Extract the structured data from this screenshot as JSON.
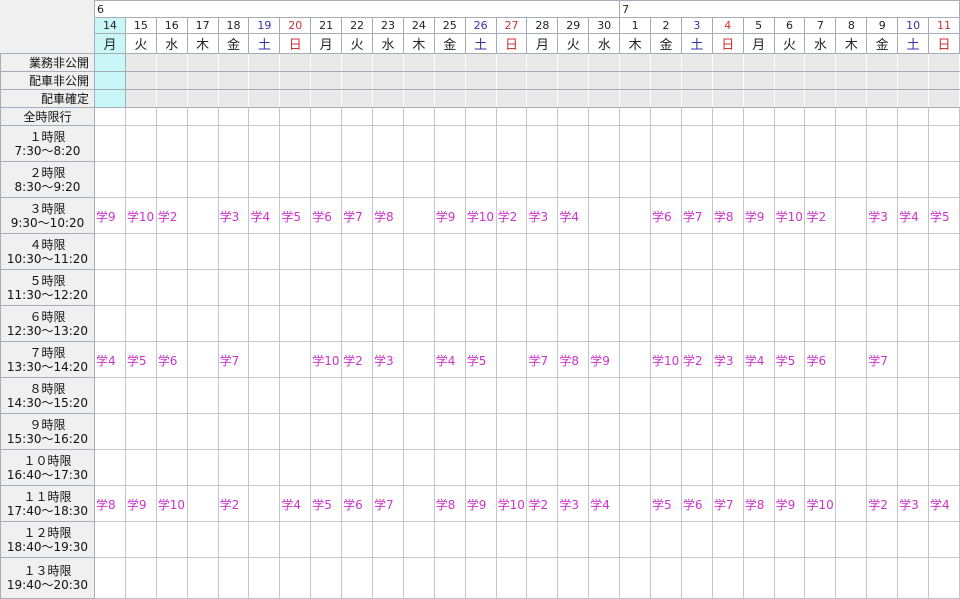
{
  "colors": {
    "page_bg": "#f0f0f0",
    "cell_bg": "#ffffff",
    "highlight_cyan": "#c9f6f6",
    "admin_row_bg": "#e9e9e9",
    "entry_magenta": "#cc33cc",
    "saturday_blue": "#3333aa",
    "sunday_red": "#cc3333",
    "grid_border": "#a6adb5"
  },
  "calendar": {
    "months": [
      {
        "label": "6",
        "span": 17
      },
      {
        "label": "7",
        "span": 11
      }
    ],
    "columns": [
      {
        "date": "14",
        "dow": "月",
        "kind": "wk",
        "highlight": true
      },
      {
        "date": "15",
        "dow": "火",
        "kind": "wk"
      },
      {
        "date": "16",
        "dow": "水",
        "kind": "wk"
      },
      {
        "date": "17",
        "dow": "木",
        "kind": "wk"
      },
      {
        "date": "18",
        "dow": "金",
        "kind": "wk"
      },
      {
        "date": "19",
        "dow": "土",
        "kind": "sat"
      },
      {
        "date": "20",
        "dow": "日",
        "kind": "sun"
      },
      {
        "date": "21",
        "dow": "月",
        "kind": "wk"
      },
      {
        "date": "22",
        "dow": "火",
        "kind": "wk"
      },
      {
        "date": "23",
        "dow": "水",
        "kind": "wk"
      },
      {
        "date": "24",
        "dow": "木",
        "kind": "wk"
      },
      {
        "date": "25",
        "dow": "金",
        "kind": "wk"
      },
      {
        "date": "26",
        "dow": "土",
        "kind": "sat"
      },
      {
        "date": "27",
        "dow": "日",
        "kind": "sun"
      },
      {
        "date": "28",
        "dow": "月",
        "kind": "wk"
      },
      {
        "date": "29",
        "dow": "火",
        "kind": "wk"
      },
      {
        "date": "30",
        "dow": "水",
        "kind": "wk"
      },
      {
        "date": "1",
        "dow": "木",
        "kind": "wk"
      },
      {
        "date": "2",
        "dow": "金",
        "kind": "wk"
      },
      {
        "date": "3",
        "dow": "土",
        "kind": "sat"
      },
      {
        "date": "4",
        "dow": "日",
        "kind": "sun"
      },
      {
        "date": "5",
        "dow": "月",
        "kind": "wk"
      },
      {
        "date": "6",
        "dow": "火",
        "kind": "wk"
      },
      {
        "date": "7",
        "dow": "水",
        "kind": "wk"
      },
      {
        "date": "8",
        "dow": "木",
        "kind": "wk"
      },
      {
        "date": "9",
        "dow": "金",
        "kind": "wk"
      },
      {
        "date": "10",
        "dow": "土",
        "kind": "sat"
      },
      {
        "date": "11",
        "dow": "日",
        "kind": "sun"
      }
    ]
  },
  "admin_rows": [
    {
      "label": "業務非公開"
    },
    {
      "label": "配車非公開"
    },
    {
      "label": "配車確定"
    }
  ],
  "all_periods_row": {
    "label": "全時限行"
  },
  "periods": [
    {
      "name": "１時限",
      "time": "7:30～8:20",
      "entries": []
    },
    {
      "name": "２時限",
      "time": "8:30～9:20",
      "entries": []
    },
    {
      "name": "３時限",
      "time": "9:30～10:20",
      "entries": [
        "学9",
        "学10",
        "学2",
        "",
        "学3",
        "学4",
        "学5",
        "学6",
        "学7",
        "学8",
        "",
        "学9",
        "学10",
        "学2",
        "学3",
        "学4",
        "",
        "",
        "学6",
        "学7",
        "学8",
        "学9",
        "学10",
        "学2",
        "",
        "学3",
        "学4",
        "学5"
      ]
    },
    {
      "name": "４時限",
      "time": "10:30～11:20",
      "entries": []
    },
    {
      "name": "５時限",
      "time": "11:30～12:20",
      "entries": []
    },
    {
      "name": "６時限",
      "time": "12:30～13:20",
      "entries": []
    },
    {
      "name": "７時限",
      "time": "13:30～14:20",
      "entries": [
        "学4",
        "学5",
        "学6",
        "",
        "学7",
        "",
        "",
        "学10",
        "学2",
        "学3",
        "",
        "学4",
        "学5",
        "",
        "学7",
        "学8",
        "学9",
        "",
        "学10",
        "学2",
        "学3",
        "学4",
        "学5",
        "学6",
        "",
        "学7",
        "",
        ""
      ]
    },
    {
      "name": "８時限",
      "time": "14:30～15:20",
      "entries": []
    },
    {
      "name": "９時限",
      "time": "15:30～16:20",
      "entries": []
    },
    {
      "name": "１０時限",
      "time": "16:40～17:30",
      "entries": []
    },
    {
      "name": "１１時限",
      "time": "17:40～18:30",
      "entries": [
        "学8",
        "学9",
        "学10",
        "",
        "学2",
        "",
        "学4",
        "学5",
        "学6",
        "学7",
        "",
        "学8",
        "学9",
        "学10",
        "学2",
        "学3",
        "学4",
        "",
        "学5",
        "学6",
        "学7",
        "学8",
        "学9",
        "学10",
        "",
        "学2",
        "学3",
        "学4"
      ]
    },
    {
      "name": "１２時限",
      "time": "18:40～19:30",
      "entries": []
    },
    {
      "name": "１３時限",
      "time": "19:40～20:30",
      "entries": []
    }
  ]
}
